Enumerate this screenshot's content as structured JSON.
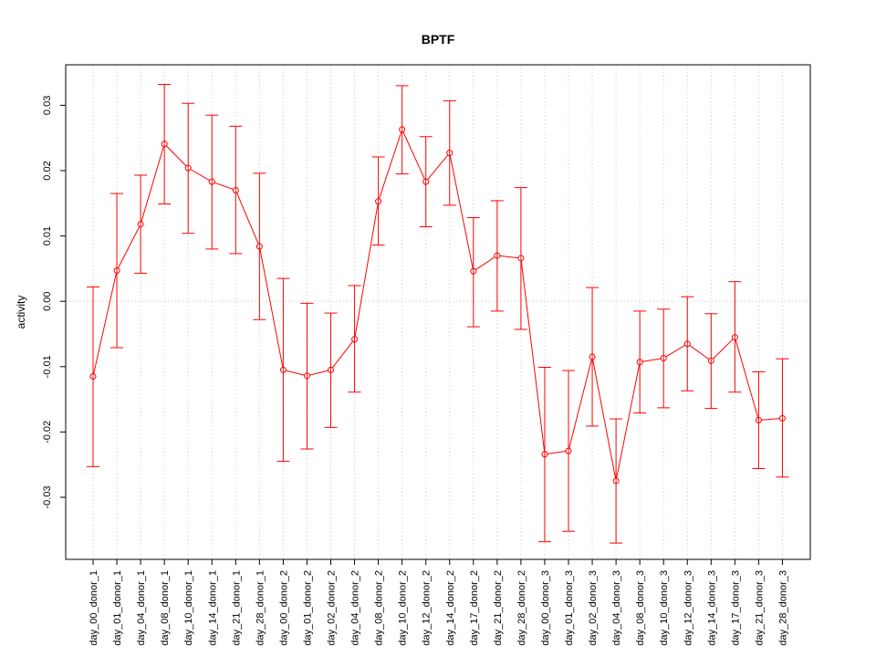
{
  "chart_data": {
    "type": "line",
    "title": "BPTF",
    "xlabel": "",
    "ylabel": "activity",
    "ylim": [
      -0.0395,
      0.0362
    ],
    "yticks": [
      -0.03,
      -0.02,
      -0.01,
      0.0,
      0.01,
      0.02,
      0.03
    ],
    "ytick_labels": [
      "-0.03",
      "-0.02",
      "-0.01",
      "0.00",
      "0.01",
      "0.02",
      "0.03"
    ],
    "grid": true,
    "series_color": "#ff0000",
    "grid_color": "#c8c8c8",
    "categories": [
      "day_00_donor_1",
      "day_01_donor_1",
      "day_04_donor_1",
      "day_08_donor_1",
      "day_10_donor_1",
      "day_14_donor_1",
      "day_21_donor_1",
      "day_28_donor_1",
      "day_00_donor_2",
      "day_01_donor_2",
      "day_02_donor_2",
      "day_04_donor_2",
      "day_08_donor_2",
      "day_10_donor_2",
      "day_12_donor_2",
      "day_14_donor_2",
      "day_17_donor_2",
      "day_21_donor_2",
      "day_28_donor_2",
      "day_00_donor_3",
      "day_01_donor_3",
      "day_02_donor_3",
      "day_04_donor_3",
      "day_08_donor_3",
      "day_10_donor_3",
      "day_12_donor_3",
      "day_14_donor_3",
      "day_17_donor_3",
      "day_21_donor_3",
      "day_28_donor_3"
    ],
    "values": [
      -0.0115,
      0.0047,
      0.0118,
      0.0241,
      0.0204,
      0.0183,
      0.017,
      0.0084,
      -0.0105,
      -0.0114,
      -0.0105,
      -0.0058,
      0.0153,
      0.0263,
      0.0183,
      0.0227,
      0.0046,
      0.007,
      0.0066,
      -0.0234,
      -0.0229,
      -0.0085,
      -0.0275,
      -0.0093,
      -0.0087,
      -0.0065,
      -0.0091,
      -0.0055,
      -0.0182,
      -0.0179
    ],
    "lower": [
      -0.0253,
      -0.0071,
      0.0043,
      0.0149,
      0.0104,
      0.008,
      0.0073,
      -0.0028,
      -0.0245,
      -0.0226,
      -0.0193,
      -0.0139,
      0.0086,
      0.0195,
      0.0114,
      0.0147,
      -0.0039,
      -0.0015,
      -0.0043,
      -0.0368,
      -0.0352,
      -0.0191,
      -0.037,
      -0.0171,
      -0.0163,
      -0.0137,
      -0.0164,
      -0.0139,
      -0.0256,
      -0.0269
    ],
    "upper": [
      0.0022,
      0.0165,
      0.0193,
      0.0332,
      0.0303,
      0.0285,
      0.0268,
      0.0196,
      0.0035,
      -0.0003,
      -0.0018,
      0.0024,
      0.0221,
      0.033,
      0.0252,
      0.0307,
      0.0128,
      0.0154,
      0.0174,
      -0.0101,
      -0.0106,
      0.0021,
      -0.018,
      -0.0015,
      -0.0012,
      0.0007,
      -0.0019,
      0.003,
      -0.0108,
      -0.0088
    ]
  }
}
